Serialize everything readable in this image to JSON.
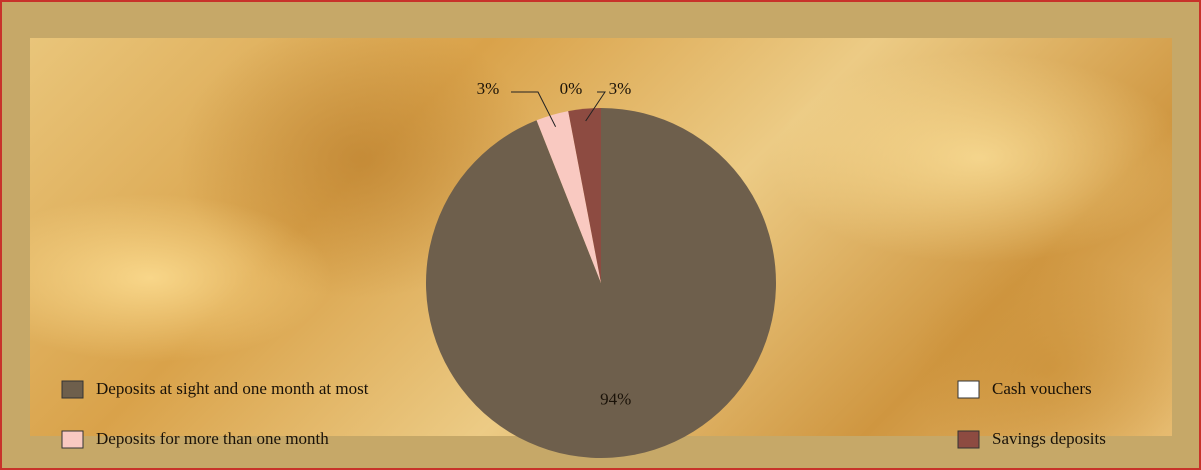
{
  "chart_data": {
    "type": "pie",
    "categories": [
      "Deposits at sight and one month at most",
      "Deposits for more than one month",
      "Cash vouchers",
      "Savings deposits"
    ],
    "values": [
      94,
      3,
      0,
      3
    ],
    "value_labels": [
      "94%",
      "3%",
      "0%",
      "3%"
    ],
    "colors": [
      "#6e5f4c",
      "#f9c9c1",
      "#ffffff",
      "#8d4b41"
    ]
  }
}
